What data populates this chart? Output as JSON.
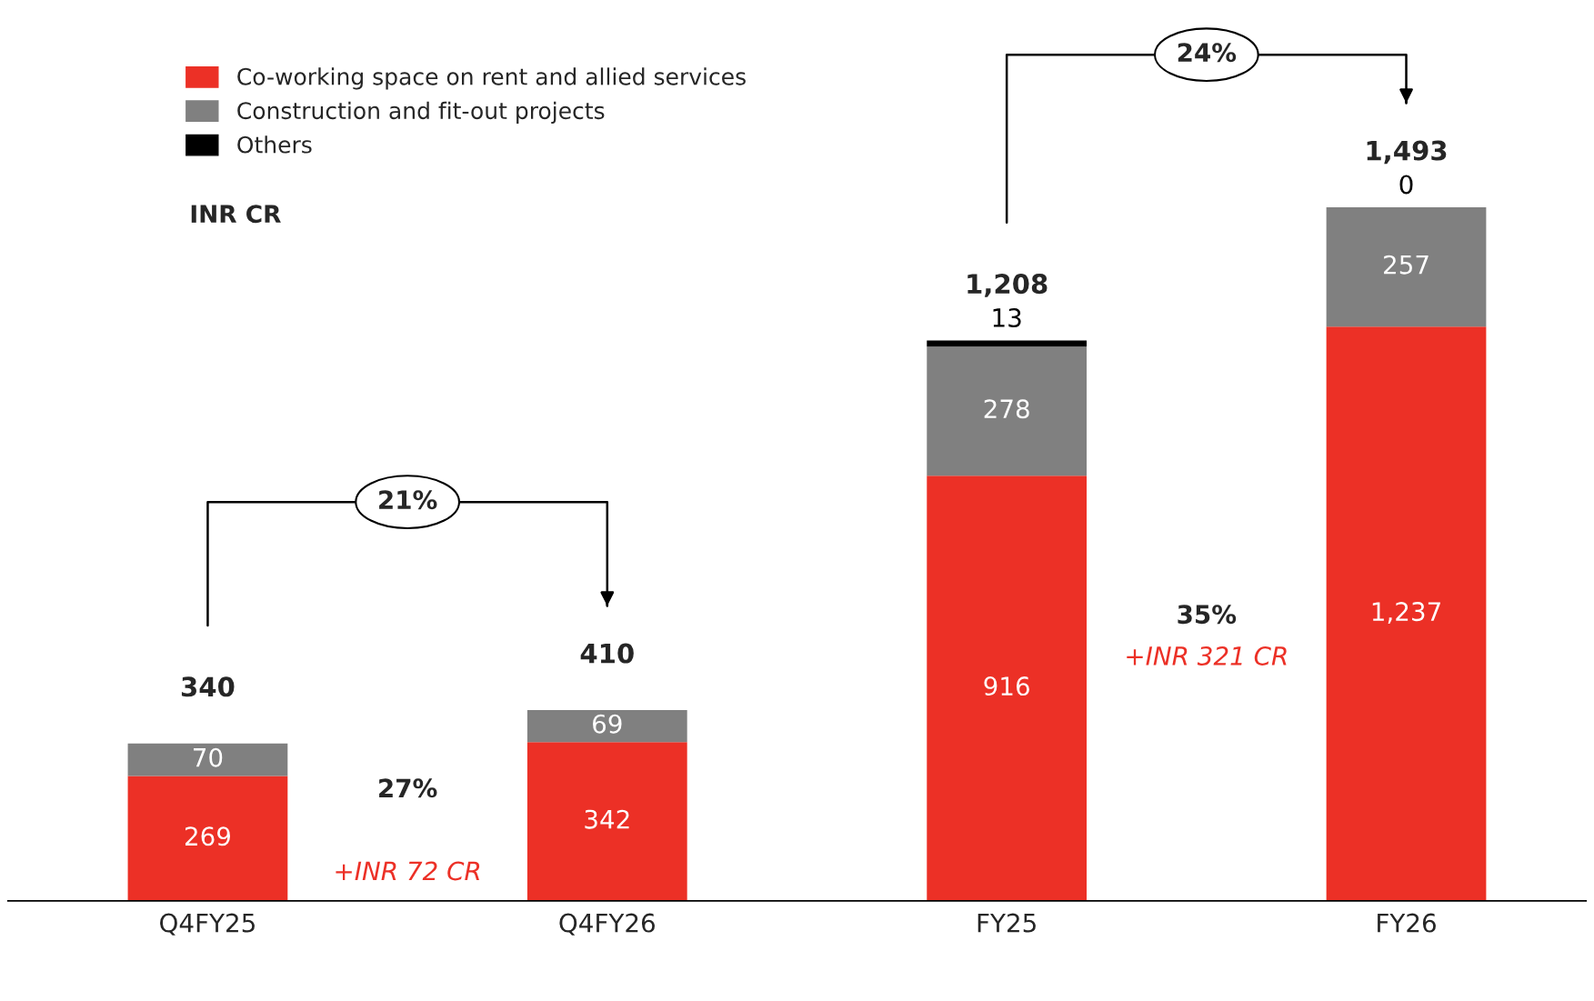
{
  "chart_data": {
    "type": "bar",
    "stacked": true,
    "legend": "top left",
    "categories": [
      "Q4FY25",
      "Q4FY26",
      "FY25",
      "FY26"
    ],
    "series": [
      {
        "name": "Co-working space on rent and allied services",
        "color": "#ec3026",
        "values": [
          269,
          342,
          916,
          1237
        ],
        "value_labels": [
          "269",
          "342",
          "916",
          "1,237"
        ]
      },
      {
        "name": "Construction and fit-out projects",
        "color": "#808080",
        "values": [
          70,
          69,
          278,
          257
        ],
        "value_labels": [
          "70",
          "69",
          "278",
          "257"
        ]
      },
      {
        "name": "Others",
        "color": "#000000",
        "values": [
          null,
          null,
          13,
          0
        ],
        "value_labels": [
          null,
          null,
          "13",
          "0"
        ]
      }
    ],
    "totals": [
      "340",
      "410",
      "1,208",
      "1,493"
    ],
    "annotations": [
      "INR CR",
      "21%",
      "24%",
      "27%",
      "+INR 72 CR",
      "35%",
      "+INR 321 CR"
    ]
  }
}
